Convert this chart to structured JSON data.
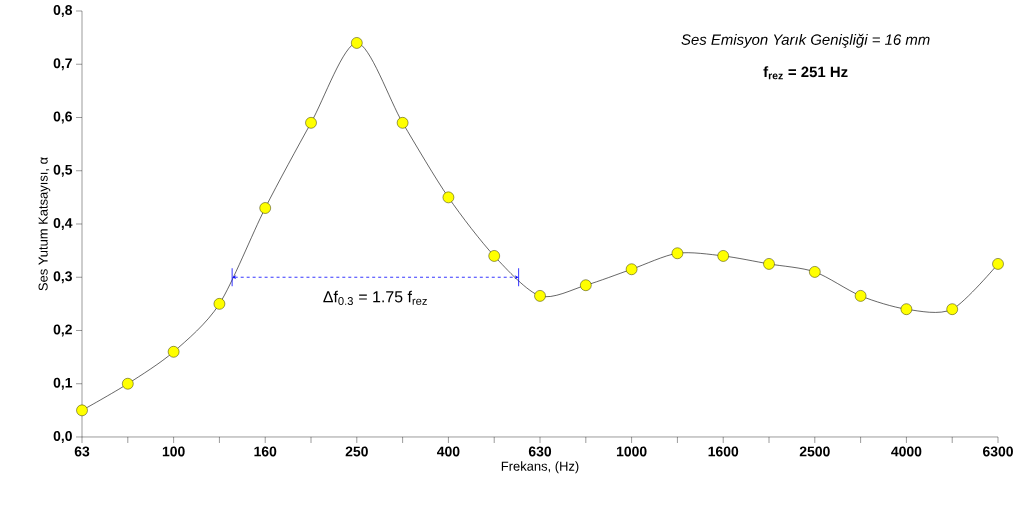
{
  "chart_data": {
    "type": "line",
    "xlabel": "Frekans, (Hz)",
    "ylabel": "Ses Yutum Katsayısı, α",
    "categories": [
      "63",
      null,
      "100",
      null,
      "160",
      null,
      "250",
      null,
      "400",
      null,
      "630",
      null,
      "1000",
      null,
      "1600",
      null,
      "2500",
      null,
      "4000",
      null,
      "6300"
    ],
    "series": [
      {
        "color": "#ffff00",
        "values": [
          0.05,
          0.1,
          0.16,
          0.25,
          0.43,
          0.59,
          0.74,
          0.59,
          0.45,
          0.34,
          0.265,
          0.285,
          0.315,
          0.345,
          0.34,
          0.325,
          0.31,
          0.265,
          0.24,
          0.24,
          0.325
        ]
      }
    ],
    "ylim": [
      0,
      0.8
    ],
    "yticks": [
      {
        "value": 0,
        "label": "0,0"
      },
      {
        "value": 0.1,
        "label": "0,1"
      },
      {
        "value": 0.2,
        "label": "0,2"
      },
      {
        "value": 0.3,
        "label": "0,3"
      },
      {
        "value": 0.4,
        "label": "0,4"
      },
      {
        "value": 0.5,
        "label": "0,5"
      },
      {
        "value": 0.6,
        "label": "0,6"
      },
      {
        "value": 0.7,
        "label": "0,7"
      },
      {
        "value": 0.8,
        "label": "0,8"
      }
    ],
    "marker": "circle",
    "grid": false,
    "ref_lines": [
      {
        "axis": "y",
        "value": 0.3,
        "label": "Δf$_{0.3}$ = 1.75 f$_{rez}$",
        "color": "#0000ff",
        "line_style": "dashed"
      }
    ],
    "annotations": [
      "Ses Emisyon Yarık Genişliği = 16 mm",
      "f$_{rez}$ = 251 Hz"
    ]
  }
}
